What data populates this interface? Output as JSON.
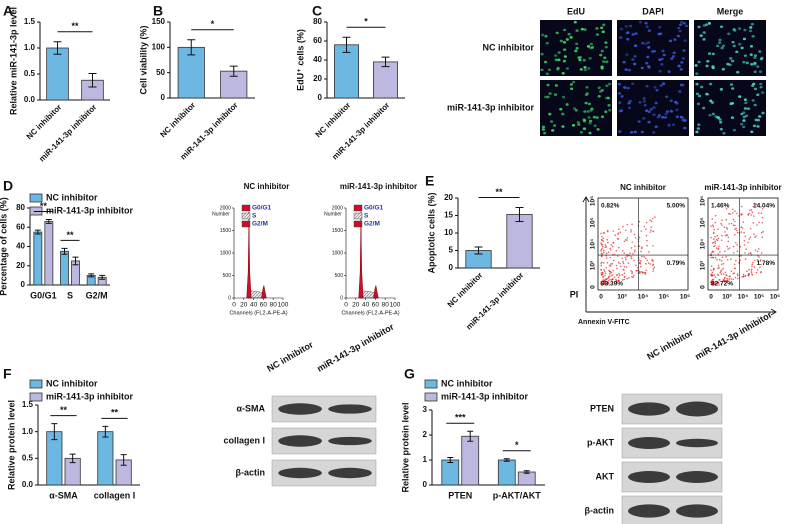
{
  "figure": {
    "panel_labels": [
      "A",
      "B",
      "C",
      "D",
      "E",
      "F",
      "G"
    ],
    "micro": {
      "columns": [
        "EdU",
        "DAPI",
        "Merge"
      ],
      "rows": [
        "NC inhibitor",
        "miR-141-3p inhibitor"
      ]
    },
    "flow": {
      "titles": [
        "NC inhibitor",
        "miR-141-3p inhibitor"
      ],
      "plots": [
        {
          "quadrants": [
            "0.82%",
            "5.00%",
            "93.39%",
            "0.79%"
          ]
        },
        {
          "quadrants": [
            "1.46%",
            "14.04%",
            "82.72%",
            "1.78%"
          ]
        }
      ],
      "ticks": [
        "0",
        "10³",
        "10⁴",
        "10⁵",
        "10⁶"
      ],
      "y_axis": "PI",
      "x_axis": "Annexin V-FITC"
    },
    "blot_f": {
      "columns": [
        "NC inhibitor",
        "miR-141-3p inhibitor"
      ],
      "rows": [
        "α-SMA",
        "collagen I",
        "β-actin"
      ]
    },
    "blot_g": {
      "columns": [
        "NC inhibitor",
        "miR-141-3p inhibitor"
      ],
      "rows": [
        "PTEN",
        "p-AKT",
        "AKT",
        "β-actin"
      ]
    }
  },
  "chart_data": [
    {
      "type": "bar",
      "ylabel": "Relative miR-141-3p level",
      "categories": [
        "NC inhibitor",
        "miR-141-3p inhibitor"
      ],
      "values": [
        1.0,
        0.38
      ],
      "errors": [
        0.12,
        0.13
      ],
      "colors": [
        "#6cb8e2",
        "#bcb8e0"
      ],
      "annotation": "**",
      "ylim": [
        0,
        1.5
      ],
      "yticks": [
        {
          "value": 0,
          "label": "0.0"
        },
        {
          "value": 0.5,
          "label": "0.5"
        },
        {
          "value": 1,
          "label": "1.0"
        },
        {
          "value": 1.5,
          "label": "1.5"
        }
      ]
    },
    {
      "type": "bar",
      "ylabel": "Cell viability (%)",
      "categories": [
        "NC inhibitor",
        "miR-141-3p inhibitor"
      ],
      "values": [
        100,
        53
      ],
      "errors": [
        15,
        10
      ],
      "colors": [
        "#6cb8e2",
        "#bcb8e0"
      ],
      "annotation": "*",
      "ylim": [
        0,
        150
      ],
      "yticks": [
        0,
        50,
        100,
        150
      ]
    },
    {
      "type": "bar",
      "ylabel": "EdU⁺ cells (%)",
      "categories": [
        "NC inhibitor",
        "miR-141-3p inhibitor"
      ],
      "values": [
        56,
        38
      ],
      "errors": [
        8,
        5
      ],
      "colors": [
        "#6cb8e2",
        "#bcb8e0"
      ],
      "annotation": "*",
      "ylim": [
        0,
        80
      ],
      "yticks": [
        0,
        20,
        40,
        60,
        80
      ]
    },
    {
      "type": "grouped-bar",
      "ylabel": "Percentage of cells (%)",
      "categories": [
        "G0/G1",
        "S",
        "G2/M"
      ],
      "series": [
        {
          "name": "NC inhibitor",
          "color": "#6cb8e2",
          "values": [
            55,
            35,
            10
          ],
          "errors": [
            2,
            3,
            1.5
          ]
        },
        {
          "name": "miR-141-3p inhibitor",
          "color": "#bcb8e0",
          "values": [
            66,
            25,
            8
          ],
          "errors": [
            2,
            4,
            2
          ]
        }
      ],
      "annotations": [
        "**",
        "**",
        null
      ],
      "ylim": [
        0,
        80
      ],
      "yticks": [
        0,
        20,
        40,
        60,
        80
      ]
    },
    {
      "type": "cycle",
      "title": "NC inhibitor",
      "xlabel": "Channels (FL2-A-PE-A)",
      "ylabel": "Number",
      "series": [
        {
          "name": "G0/G1",
          "color": "#c8102e"
        },
        {
          "name": "S",
          "color": "#c9c9d6"
        },
        {
          "name": "G2/M",
          "color": "#c8102e"
        }
      ],
      "xlim": [
        0,
        100
      ],
      "xticks": [
        0,
        20,
        40,
        60,
        80,
        100
      ],
      "ylim": [
        0,
        2000
      ],
      "yticks": [
        0,
        500,
        1000,
        1500,
        2000
      ]
    },
    {
      "type": "cycle",
      "title": "miR-141-3p inhibitor",
      "xlabel": "Channels (FL2-A-PE-A)",
      "ylabel": "Number",
      "series": [
        {
          "name": "G0/G1",
          "color": "#c8102e"
        },
        {
          "name": "S",
          "color": "#c9c9d6"
        },
        {
          "name": "G2/M",
          "color": "#c8102e"
        }
      ],
      "xlim": [
        0,
        100
      ],
      "xticks": [
        0,
        20,
        40,
        60,
        80,
        100
      ],
      "ylim": [
        0,
        2000
      ],
      "yticks": [
        0,
        500,
        1000,
        1500,
        2000
      ]
    },
    {
      "type": "bar",
      "ylabel": "Apoptotic cells (%)",
      "categories": [
        "NC inhibitor",
        "miR-141-3p inhibitor"
      ],
      "values": [
        5,
        15.3
      ],
      "errors": [
        1,
        2
      ],
      "colors": [
        "#6cb8e2",
        "#bcb8e0"
      ],
      "annotation": "**",
      "ylim": [
        0,
        20
      ],
      "yticks": [
        0,
        5,
        10,
        15,
        20
      ]
    },
    {
      "type": "grouped-bar",
      "ylabel": "Relative protein level",
      "categories": [
        "α-SMA",
        "collagen I"
      ],
      "series": [
        {
          "name": "NC inhibitor",
          "color": "#6cb8e2",
          "values": [
            1.0,
            1.0
          ],
          "errors": [
            0.15,
            0.1
          ]
        },
        {
          "name": "miR-141-3p inhibitor",
          "color": "#bcb8e0",
          "values": [
            0.5,
            0.47
          ],
          "errors": [
            0.08,
            0.1
          ]
        }
      ],
      "annotations": [
        "**",
        "**"
      ],
      "ylim": [
        0,
        1.5
      ],
      "yticks": [
        {
          "value": 0,
          "label": "0.0"
        },
        {
          "value": 0.5,
          "label": "0.5"
        },
        {
          "value": 1,
          "label": "1.0"
        },
        {
          "value": 1.5,
          "label": "1.5"
        }
      ]
    },
    {
      "type": "grouped-bar",
      "ylabel": "Relative protein level",
      "categories": [
        "PTEN",
        "p-AKT/AKT"
      ],
      "series": [
        {
          "name": "NC inhibitor",
          "color": "#6cb8e2",
          "values": [
            1.0,
            1.0
          ],
          "errors": [
            0.1,
            0.05
          ]
        },
        {
          "name": "miR-141-3p inhibitor",
          "color": "#bcb8e0",
          "values": [
            1.95,
            0.52
          ],
          "errors": [
            0.2,
            0.05
          ]
        }
      ],
      "annotations": [
        "***",
        "*"
      ],
      "ylim": [
        0,
        3
      ],
      "yticks": [
        0,
        1,
        2,
        3
      ]
    }
  ]
}
